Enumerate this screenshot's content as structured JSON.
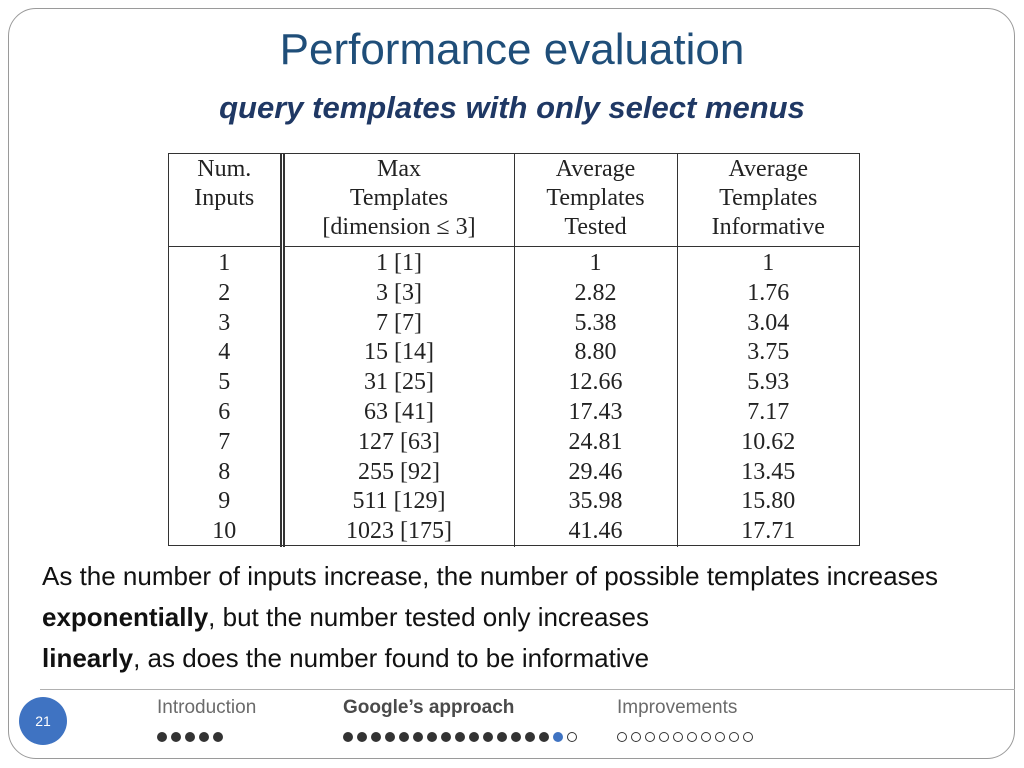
{
  "slide": {
    "title": "Performance evaluation",
    "subtitle": "query templates with only select menus",
    "page_number": "21"
  },
  "table": {
    "headers": [
      [
        "Num.",
        "Inputs"
      ],
      [
        "Max",
        "Templates",
        "[dimension ≤ 3]"
      ],
      [
        "Average",
        "Templates",
        "Tested"
      ],
      [
        "Average",
        "Templates",
        "Informative"
      ]
    ],
    "rows": [
      [
        "1",
        "1 [1]",
        "1",
        "1"
      ],
      [
        "2",
        "3 [3]",
        "2.82",
        "1.76"
      ],
      [
        "3",
        "7 [7]",
        "5.38",
        "3.04"
      ],
      [
        "4",
        "15 [14]",
        "8.80",
        "3.75"
      ],
      [
        "5",
        "31 [25]",
        "12.66",
        "5.93"
      ],
      [
        "6",
        "63 [41]",
        "17.43",
        "7.17"
      ],
      [
        "7",
        "127 [63]",
        "24.81",
        "10.62"
      ],
      [
        "8",
        "255 [92]",
        "29.46",
        "13.45"
      ],
      [
        "9",
        "511 [129]",
        "35.98",
        "15.80"
      ],
      [
        "10",
        "1023 [175]",
        "41.46",
        "17.71"
      ]
    ]
  },
  "body": {
    "part1": "As the number of inputs increase, the number of possible templates increases ",
    "bold1": "exponentially",
    "part2": ", but the number tested only increases ",
    "bold2": "linearly",
    "part3": ", as does the number found to be informative"
  },
  "nav": {
    "sections": [
      {
        "label": "Introduction",
        "active": false,
        "filled": 5,
        "current": 0,
        "empty": 0
      },
      {
        "label": "Google’s approach",
        "active": true,
        "filled": 15,
        "current": 1,
        "empty": 1
      },
      {
        "label": "Improvements",
        "active": false,
        "filled": 0,
        "current": 0,
        "empty": 10
      }
    ]
  },
  "colors": {
    "title": "#1f4e79",
    "accent_dot": "#3f73c2",
    "page_badge": "#3f73c2"
  }
}
